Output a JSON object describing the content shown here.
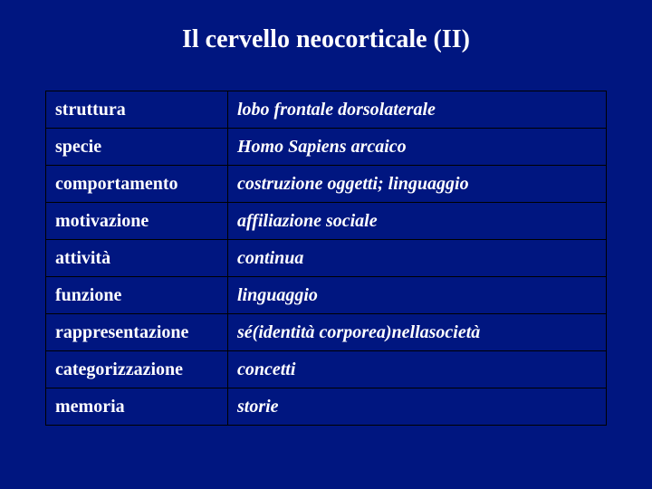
{
  "title": "Il cervello neocorticale (II)",
  "background_color": "#001680",
  "text_color": "#ffffff",
  "border_color": "#000000",
  "title_fontsize": 28,
  "cell_fontsize": 20,
  "table": {
    "col_left_width": 180,
    "total_width": 620,
    "rows": [
      {
        "label": "struttura",
        "value": "lobo frontale dorsolaterale"
      },
      {
        "label": "specie",
        "value": "Homo Sapiens arcaico"
      },
      {
        "label": "comportamento",
        "value": "costruzione oggetti; linguaggio"
      },
      {
        "label": "motivazione",
        "value": "affiliazione sociale"
      },
      {
        "label": "attività",
        "value": "continua"
      },
      {
        "label": "funzione",
        "value": "linguaggio"
      },
      {
        "label": "rappresentazione",
        "value": "sé(identità corporea)nellasocietà"
      },
      {
        "label": "categorizzazione",
        "value": "concetti"
      },
      {
        "label": "memoria",
        "value": "storie"
      }
    ]
  }
}
